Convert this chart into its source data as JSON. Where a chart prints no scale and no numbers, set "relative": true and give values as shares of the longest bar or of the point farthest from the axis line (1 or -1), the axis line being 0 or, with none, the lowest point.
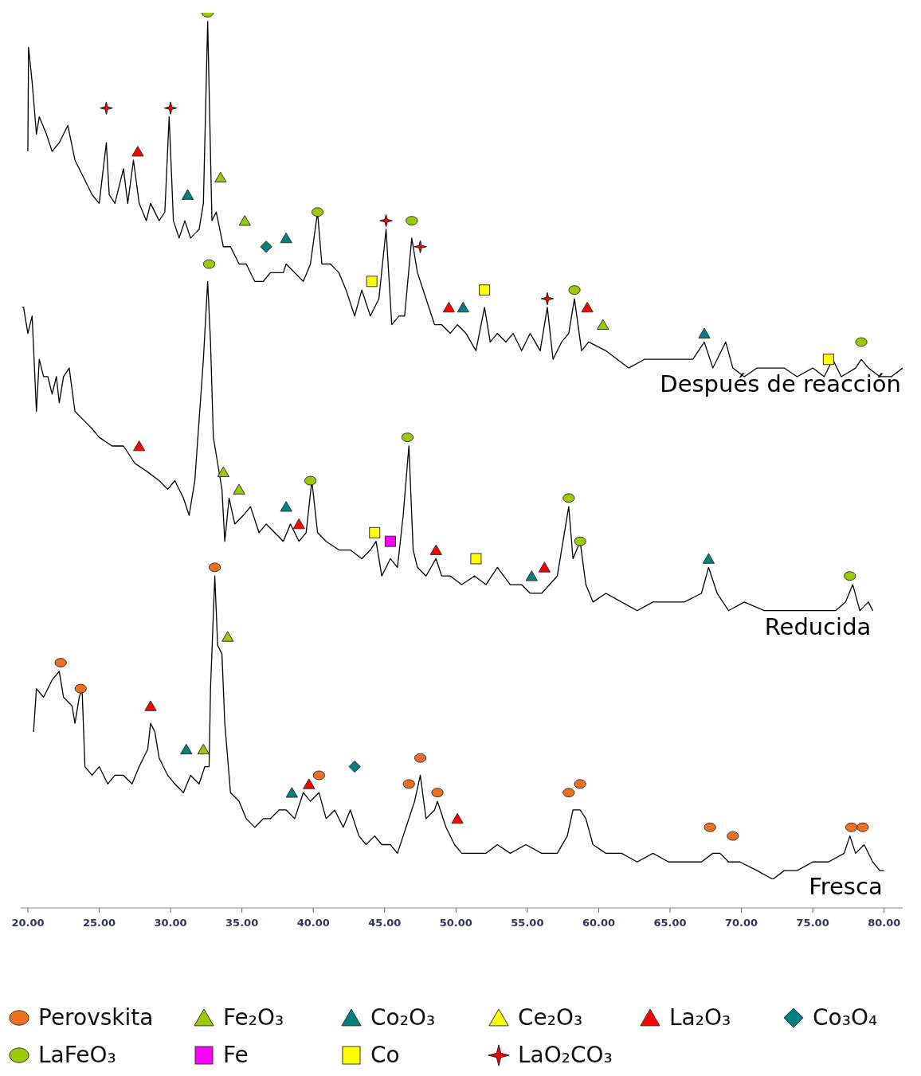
{
  "chart_data": {
    "type": "line",
    "relative": true,
    "xlim": [
      19.5,
      81.3
    ],
    "xticks": [
      {
        "value": 20,
        "label": "20.00"
      },
      {
        "value": 25,
        "label": "25.00"
      },
      {
        "value": 30,
        "label": "30.00"
      },
      {
        "value": 35,
        "label": "35.00"
      },
      {
        "value": 40,
        "label": "40.00"
      },
      {
        "value": 45,
        "label": "45.00"
      },
      {
        "value": 50,
        "label": "50.00"
      },
      {
        "value": 55,
        "label": "55.00"
      },
      {
        "value": 60,
        "label": "60.00"
      },
      {
        "value": 65,
        "label": "65.00"
      },
      {
        "value": 70,
        "label": "70.00"
      },
      {
        "value": 75,
        "label": "75.00"
      },
      {
        "value": 80,
        "label": "80.00"
      }
    ],
    "legend": "bottom",
    "grid": false,
    "series": [
      {
        "name": "Después de reacción",
        "color": "#000000",
        "x": [
          20.0,
          20.05,
          20.3,
          20.6,
          20.8,
          21.3,
          21.7,
          22.2,
          22.8,
          23.3,
          23.9,
          24.5,
          25.0,
          25.5,
          25.7,
          26.1,
          26.7,
          27.0,
          27.4,
          27.8,
          28.3,
          28.6,
          29.2,
          29.6,
          29.9,
          30.2,
          30.6,
          31.0,
          31.4,
          32.0,
          32.3,
          32.6,
          32.9,
          33.2,
          33.7,
          34.2,
          34.8,
          35.3,
          35.9,
          36.5,
          37.0,
          37.9,
          38.1,
          38.7,
          39.3,
          39.8,
          40.3,
          40.6,
          41.2,
          41.8,
          42.3,
          42.9,
          43.4,
          44.0,
          44.6,
          45.1,
          45.5,
          46.0,
          46.4,
          46.9,
          47.3,
          47.9,
          48.5,
          49.0,
          49.6,
          50.1,
          50.7,
          51.4,
          52.0,
          52.4,
          52.9,
          53.5,
          54.0,
          54.6,
          55.2,
          55.9,
          56.4,
          56.8,
          57.4,
          57.9,
          58.3,
          58.8,
          59.3,
          60.5,
          61.3,
          62.1,
          63.2,
          64.4,
          65.5,
          66.6,
          67.4,
          68.0,
          68.9,
          69.4,
          70.2,
          71.1,
          72.2,
          73.0,
          73.9,
          75.0,
          75.8,
          76.4,
          77.0,
          78.0,
          78.4,
          78.9,
          79.7,
          80.5,
          81.3
        ],
        "values": [
          0.84,
          0.96,
          0.92,
          0.86,
          0.88,
          0.86,
          0.84,
          0.85,
          0.87,
          0.83,
          0.81,
          0.79,
          0.78,
          0.85,
          0.79,
          0.78,
          0.82,
          0.78,
          0.83,
          0.78,
          0.76,
          0.78,
          0.76,
          0.77,
          0.88,
          0.76,
          0.74,
          0.76,
          0.74,
          0.75,
          0.78,
          0.99,
          0.76,
          0.77,
          0.73,
          0.73,
          0.71,
          0.71,
          0.69,
          0.69,
          0.7,
          0.7,
          0.71,
          0.7,
          0.69,
          0.71,
          0.77,
          0.71,
          0.71,
          0.7,
          0.68,
          0.65,
          0.68,
          0.65,
          0.67,
          0.75,
          0.64,
          0.65,
          0.65,
          0.74,
          0.7,
          0.67,
          0.64,
          0.64,
          0.63,
          0.64,
          0.63,
          0.61,
          0.66,
          0.62,
          0.63,
          0.62,
          0.63,
          0.61,
          0.63,
          0.61,
          0.66,
          0.6,
          0.62,
          0.63,
          0.67,
          0.61,
          0.62,
          0.61,
          0.6,
          0.59,
          0.6,
          0.6,
          0.6,
          0.6,
          0.62,
          0.59,
          0.62,
          0.59,
          0.58,
          0.59,
          0.59,
          0.59,
          0.58,
          0.59,
          0.58,
          0.6,
          0.58,
          0.59,
          0.6,
          0.59,
          0.58,
          0.58,
          0.59
        ]
      },
      {
        "name": "Reducida",
        "color": "#000000",
        "x": [
          19.6,
          19.7,
          20.0,
          20.3,
          20.6,
          20.8,
          21.1,
          21.4,
          21.7,
          22.0,
          22.2,
          22.5,
          22.9,
          23.3,
          23.9,
          24.5,
          25.0,
          25.9,
          26.7,
          27.5,
          28.4,
          29.2,
          29.8,
          30.3,
          30.9,
          31.3,
          31.7,
          32.3,
          32.6,
          32.8,
          33.0,
          33.3,
          33.6,
          33.8,
          34.1,
          34.5,
          35.1,
          35.6,
          36.2,
          36.7,
          37.3,
          37.9,
          38.4,
          39.0,
          39.5,
          39.9,
          40.3,
          40.9,
          41.8,
          42.6,
          43.4,
          44.0,
          44.4,
          44.8,
          45.4,
          45.9,
          46.3,
          46.7,
          47.0,
          47.3,
          47.9,
          48.6,
          49.0,
          49.6,
          50.4,
          51.3,
          52.1,
          52.9,
          53.8,
          54.6,
          55.2,
          56.0,
          57.1,
          57.9,
          58.2,
          58.7,
          59.1,
          59.6,
          60.5,
          61.6,
          62.7,
          63.8,
          64.9,
          66.0,
          67.2,
          67.7,
          68.3,
          69.1,
          70.2,
          71.6,
          73.0,
          74.4,
          75.5,
          76.6,
          77.3,
          77.8,
          78.3,
          78.9,
          79.2
        ],
        "values": [
          0.66,
          0.66,
          0.63,
          0.65,
          0.54,
          0.6,
          0.58,
          0.58,
          0.56,
          0.58,
          0.55,
          0.58,
          0.59,
          0.54,
          0.53,
          0.52,
          0.51,
          0.5,
          0.5,
          0.48,
          0.47,
          0.46,
          0.45,
          0.46,
          0.44,
          0.42,
          0.46,
          0.6,
          0.69,
          0.62,
          0.51,
          0.48,
          0.45,
          0.39,
          0.44,
          0.41,
          0.42,
          0.43,
          0.4,
          0.41,
          0.4,
          0.39,
          0.41,
          0.39,
          0.4,
          0.46,
          0.4,
          0.39,
          0.38,
          0.38,
          0.37,
          0.38,
          0.39,
          0.35,
          0.37,
          0.36,
          0.42,
          0.5,
          0.38,
          0.36,
          0.35,
          0.37,
          0.35,
          0.35,
          0.34,
          0.35,
          0.34,
          0.36,
          0.34,
          0.34,
          0.33,
          0.33,
          0.35,
          0.43,
          0.37,
          0.39,
          0.34,
          0.32,
          0.33,
          0.32,
          0.31,
          0.32,
          0.32,
          0.32,
          0.33,
          0.36,
          0.33,
          0.31,
          0.32,
          0.31,
          0.31,
          0.31,
          0.31,
          0.31,
          0.32,
          0.34,
          0.31,
          0.32,
          0.31
        ]
      },
      {
        "name": "Fresca",
        "color": "#000000",
        "x": [
          20.4,
          20.6,
          21.1,
          21.7,
          22.2,
          22.5,
          23.1,
          23.3,
          23.6,
          23.8,
          24.0,
          24.5,
          25.0,
          25.6,
          26.1,
          26.7,
          27.3,
          27.8,
          28.4,
          28.6,
          28.9,
          29.2,
          29.8,
          30.3,
          30.9,
          31.4,
          32.0,
          32.4,
          32.7,
          32.8,
          33.1,
          33.3,
          33.6,
          33.8,
          34.2,
          34.8,
          35.3,
          35.9,
          36.5,
          37.0,
          37.6,
          38.1,
          38.7,
          39.3,
          39.8,
          40.4,
          40.9,
          41.5,
          42.1,
          42.6,
          43.2,
          43.7,
          44.3,
          44.8,
          45.4,
          45.9,
          46.5,
          47.1,
          47.5,
          47.9,
          48.5,
          48.7,
          49.3,
          49.9,
          50.4,
          51.3,
          52.1,
          52.9,
          53.8,
          54.9,
          56.0,
          57.1,
          57.8,
          58.2,
          58.7,
          59.1,
          59.6,
          60.5,
          61.6,
          62.7,
          63.8,
          64.9,
          66.0,
          67.2,
          68.0,
          68.5,
          69.1,
          69.9,
          71.1,
          72.2,
          73.0,
          73.9,
          75.0,
          76.1,
          77.2,
          77.6,
          78.0,
          78.6,
          79.2,
          79.7,
          80.0
        ],
        "values": [
          0.17,
          0.22,
          0.21,
          0.23,
          0.24,
          0.21,
          0.2,
          0.18,
          0.21,
          0.22,
          0.13,
          0.12,
          0.13,
          0.11,
          0.12,
          0.12,
          0.11,
          0.13,
          0.15,
          0.18,
          0.17,
          0.14,
          0.12,
          0.11,
          0.1,
          0.12,
          0.11,
          0.13,
          0.13,
          0.22,
          0.35,
          0.27,
          0.26,
          0.18,
          0.1,
          0.09,
          0.07,
          0.06,
          0.07,
          0.07,
          0.08,
          0.08,
          0.07,
          0.1,
          0.09,
          0.1,
          0.07,
          0.08,
          0.06,
          0.08,
          0.05,
          0.04,
          0.05,
          0.04,
          0.04,
          0.03,
          0.06,
          0.09,
          0.12,
          0.07,
          0.08,
          0.09,
          0.06,
          0.04,
          0.03,
          0.03,
          0.03,
          0.04,
          0.03,
          0.04,
          0.03,
          0.03,
          0.05,
          0.08,
          0.08,
          0.07,
          0.04,
          0.03,
          0.03,
          0.02,
          0.03,
          0.02,
          0.02,
          0.02,
          0.03,
          0.03,
          0.02,
          0.02,
          0.01,
          0.0,
          0.01,
          0.01,
          0.02,
          0.02,
          0.03,
          0.05,
          0.03,
          0.04,
          0.02,
          0.01,
          0.01
        ]
      },
      {
        "name": "Perovskita",
        "type": "scatter",
        "color": "#f07020",
        "marker": "circle",
        "x": [
          22.3,
          23.7,
          33.1,
          40.4,
          46.7,
          47.5,
          48.7,
          57.9,
          58.7,
          67.8,
          69.4,
          77.7,
          78.5
        ],
        "values": [
          0.25,
          0.22,
          0.36,
          0.12,
          0.11,
          0.14,
          0.1,
          0.1,
          0.11,
          0.06,
          0.05,
          0.06,
          0.06
        ]
      },
      {
        "name": "Fe₂O₃",
        "type": "scatter",
        "color": "#99cc00",
        "marker": "triangle",
        "x": [
          33.5,
          35.2,
          60.3,
          33.7,
          34.8,
          34.0,
          32.3
        ],
        "values": [
          0.81,
          0.76,
          0.64,
          0.47,
          0.45,
          0.28,
          0.15
        ]
      },
      {
        "name": "Co₂O₃",
        "type": "scatter",
        "color": "#008080",
        "marker": "triangle",
        "x": [
          31.2,
          38.1,
          50.5,
          67.4,
          38.1,
          55.3,
          67.7,
          31.1,
          38.5
        ],
        "values": [
          0.79,
          0.74,
          0.66,
          0.63,
          0.43,
          0.35,
          0.37,
          0.15,
          0.1
        ]
      },
      {
        "name": "Ce₂O₃",
        "type": "scatter",
        "color": "#ffff00",
        "marker": "triangle"
      },
      {
        "name": "La₂O₃",
        "type": "scatter",
        "color": "#ff0000",
        "marker": "triangle",
        "x": [
          27.7,
          49.5,
          59.2,
          27.8,
          39.0,
          48.6,
          56.2,
          28.6,
          39.7,
          50.1
        ],
        "values": [
          0.84,
          0.66,
          0.66,
          0.5,
          0.41,
          0.38,
          0.36,
          0.2,
          0.11,
          0.07
        ]
      },
      {
        "name": "Co₃O₄",
        "type": "scatter",
        "color": "#008080",
        "marker": "diamond",
        "x": [
          36.7,
          42.9
        ],
        "values": [
          0.73,
          0.13
        ]
      },
      {
        "name": "LaFeO₃",
        "type": "scatter",
        "color": "#99cc00",
        "marker": "circle",
        "x": [
          32.6,
          40.3,
          46.9,
          58.3,
          78.4,
          32.7,
          39.8,
          46.6,
          57.9,
          58.7,
          77.6
        ],
        "values": [
          1.0,
          0.77,
          0.76,
          0.68,
          0.62,
          0.71,
          0.46,
          0.51,
          0.44,
          0.39,
          0.35
        ]
      },
      {
        "name": "Fe",
        "type": "scatter",
        "color": "#ff00ff",
        "marker": "square",
        "x": [
          45.4
        ],
        "values": [
          0.39
        ]
      },
      {
        "name": "Co",
        "type": "scatter",
        "color": "#ffff00",
        "marker": "square",
        "x": [
          44.1,
          52.0,
          76.1,
          44.3,
          51.4
        ],
        "values": [
          0.69,
          0.68,
          0.6,
          0.4,
          0.37
        ]
      },
      {
        "name": "LaO₂CO₃",
        "type": "scatter",
        "color": "#ff0000",
        "marker": "star",
        "x": [
          25.5,
          30.0,
          45.1,
          56.4,
          47.5
        ],
        "values": [
          0.89,
          0.89,
          0.76,
          0.67,
          0.73
        ]
      }
    ]
  }
}
